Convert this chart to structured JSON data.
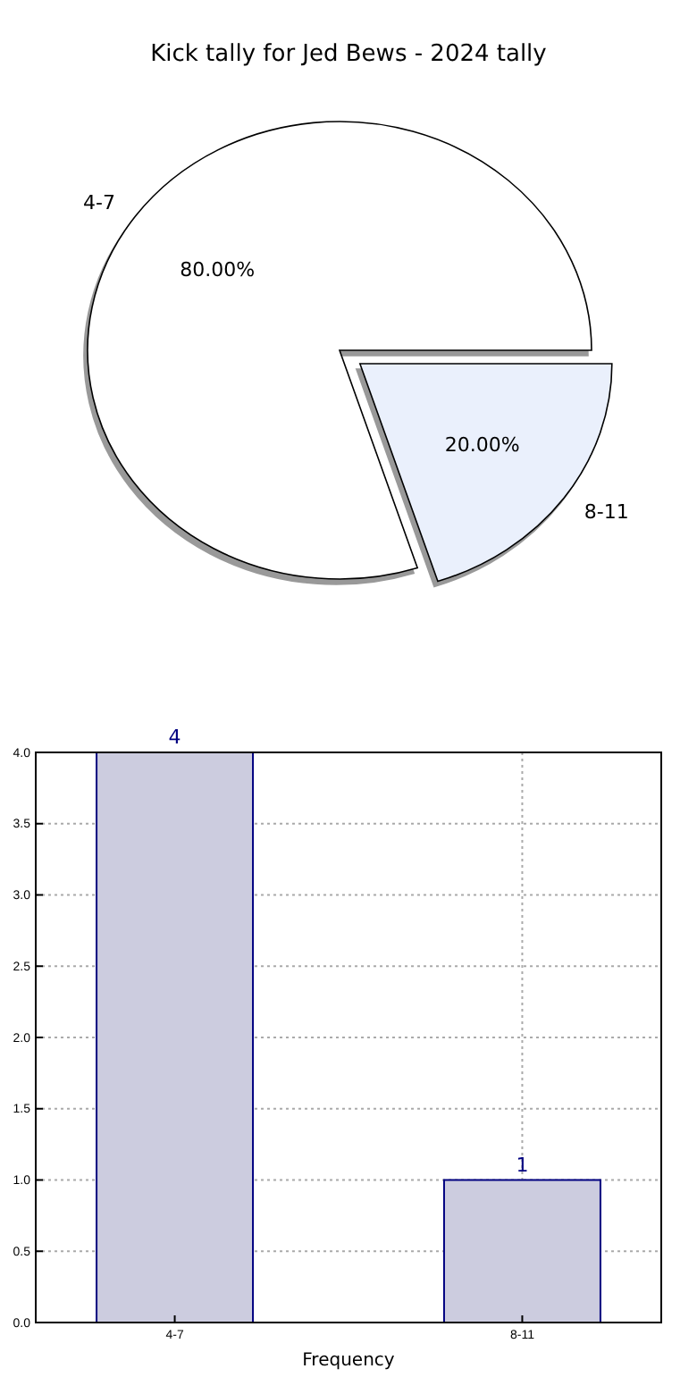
{
  "chart_data": [
    {
      "type": "pie",
      "title": "Kick tally for Jed Bews - 2024 tally",
      "categories": [
        "4-7",
        "8-11"
      ],
      "values": [
        80,
        20
      ],
      "colors": [
        "#ffffff",
        "#eaf0fc"
      ],
      "value_labels": [
        "80.00%",
        "20.00%"
      ]
    },
    {
      "type": "bar",
      "xlabel": "Frequency",
      "categories": [
        "4-7",
        "8-11"
      ],
      "values": [
        4,
        1
      ],
      "color": "#ccccdf",
      "ylim": [
        0,
        4
      ],
      "yticks": [
        {
          "value": 0,
          "label": "0.0"
        },
        {
          "value": 0.5,
          "label": "0.5"
        },
        {
          "value": 1,
          "label": "1.0"
        },
        {
          "value": 1.5,
          "label": "1.5"
        },
        {
          "value": 2,
          "label": "2.0"
        },
        {
          "value": 2.5,
          "label": "2.5"
        },
        {
          "value": 3,
          "label": "3.0"
        },
        {
          "value": 3.5,
          "label": "3.5"
        },
        {
          "value": 4,
          "label": "4.0"
        }
      ],
      "grid": true,
      "data_labels": true
    }
  ]
}
